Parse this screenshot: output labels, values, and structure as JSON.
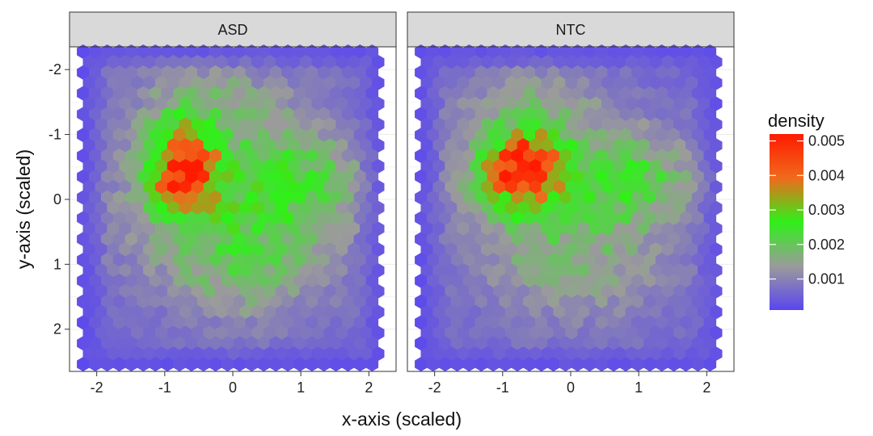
{
  "chart_data": {
    "type": "heatmap",
    "subtype": "hexbin-facets",
    "xlabel": "x-axis (scaled)",
    "ylabel": "y-axis (scaled)",
    "xlim": [
      -2.4,
      2.4
    ],
    "ylim": [
      2.65,
      -2.35
    ],
    "y_reversed": true,
    "x_ticks": [
      -2,
      -1,
      0,
      1,
      2
    ],
    "y_ticks": [
      -2,
      -1,
      0,
      1,
      2
    ],
    "grid": true,
    "legend": {
      "title": "density",
      "position": "right",
      "ticks": [
        "0.001",
        "0.002",
        "0.003",
        "0.004",
        "0.005"
      ],
      "tick_values": [
        0.001,
        0.002,
        0.003,
        0.004,
        0.005
      ],
      "range": [
        0.0001,
        0.0052
      ],
      "colors": [
        "#5a46f0",
        "#9b9b9b",
        "#2ff019",
        "#f06a1c",
        "#ff1a00"
      ]
    },
    "facets": [
      {
        "name": "ASD",
        "x_extent": [
          -2.2,
          2.2
        ],
        "y_extent": [
          -2.35,
          2.6
        ],
        "background": 0.0006,
        "peak_center": [
          -0.65,
          -0.5
        ],
        "blobs": [
          {
            "x": -0.72,
            "y": -0.5,
            "sx": 0.34,
            "sy": 0.45,
            "a": 0.0039
          },
          {
            "x": -0.55,
            "y": -0.45,
            "sx": 0.1,
            "sy": 0.1,
            "a": 0.0012
          },
          {
            "x": -0.2,
            "y": 0.0,
            "sx": 1.1,
            "sy": 0.9,
            "a": 0.0013
          },
          {
            "x": 1.0,
            "y": -0.3,
            "sx": 0.7,
            "sy": 0.55,
            "a": 0.0011
          },
          {
            "x": 0.3,
            "y": 1.1,
            "sx": 0.8,
            "sy": 0.6,
            "a": 0.0008
          },
          {
            "x": -0.3,
            "y": -1.6,
            "sx": 0.9,
            "sy": 0.4,
            "a": 0.0007
          }
        ]
      },
      {
        "name": "NTC",
        "x_extent": [
          -2.2,
          2.2
        ],
        "y_extent": [
          -2.35,
          2.6
        ],
        "background": 0.0006,
        "peak_center": [
          -0.65,
          -0.5
        ],
        "blobs": [
          {
            "x": -0.7,
            "y": -0.48,
            "sx": 0.4,
            "sy": 0.38,
            "a": 0.0041
          },
          {
            "x": -0.2,
            "y": -0.15,
            "sx": 1.05,
            "sy": 0.75,
            "a": 0.0013
          },
          {
            "x": 1.1,
            "y": -0.3,
            "sx": 0.6,
            "sy": 0.5,
            "a": 0.001
          },
          {
            "x": 0.1,
            "y": 1.2,
            "sx": 1.0,
            "sy": 0.6,
            "a": 0.0007
          },
          {
            "x": -0.6,
            "y": -1.5,
            "sx": 0.8,
            "sy": 0.4,
            "a": 0.0007
          }
        ]
      }
    ]
  }
}
